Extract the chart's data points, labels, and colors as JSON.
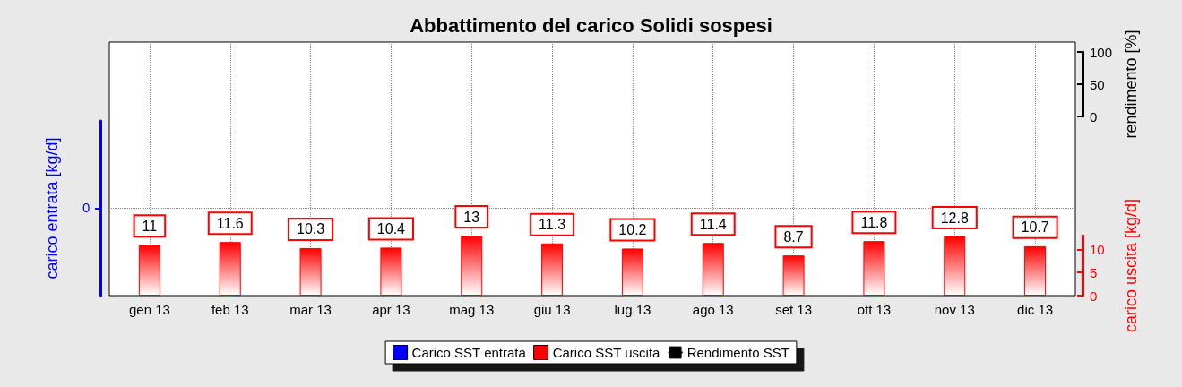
{
  "chart_data": {
    "type": "bar",
    "title": "Abbattimento del carico Solidi sospesi",
    "categories": [
      "gen 13",
      "feb 13",
      "mar 13",
      "apr 13",
      "mag 13",
      "giu 13",
      "lug 13",
      "ago 13",
      "set 13",
      "ott 13",
      "nov 13",
      "dic 13"
    ],
    "series": [
      {
        "name": "Carico SST entrata",
        "color": "#0000ff",
        "values": [
          null,
          null,
          null,
          null,
          null,
          null,
          null,
          null,
          null,
          null,
          null,
          null
        ]
      },
      {
        "name": "Carico SST uscita",
        "color": "#ff0000",
        "axis": "y2",
        "values": [
          11,
          11.6,
          10.3,
          10.4,
          13,
          11.3,
          10.2,
          11.4,
          8.7,
          11.8,
          12.8,
          10.7
        ]
      },
      {
        "name": "Rendimento SST",
        "color": "#000000",
        "type": "line",
        "axis": "y3",
        "values": [
          null,
          null,
          null,
          null,
          null,
          null,
          null,
          null,
          null,
          null,
          null,
          null
        ]
      }
    ],
    "ylabel": "carico entrata [kg/d]",
    "annotations": [
      "0"
    ],
    "y2label": "carico uscita [kg/d]",
    "y2lim": [
      0,
      13
    ],
    "y2ticks": [
      0,
      5,
      10
    ],
    "y3label": "rendimento [%]",
    "y3lim": [
      0,
      100
    ],
    "y3ticks": [
      0,
      50,
      100
    ],
    "data_labels": true,
    "grid": true,
    "legend": "bottom",
    "marker": "square"
  }
}
